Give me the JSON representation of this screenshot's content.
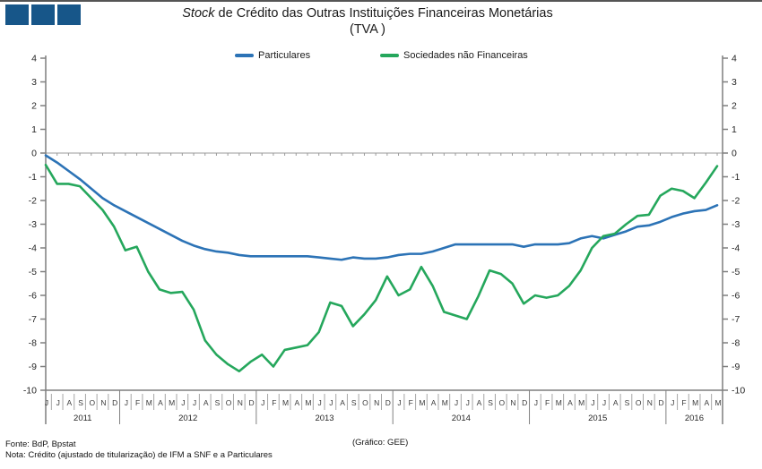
{
  "brand": {
    "square_color": "#175689"
  },
  "header": {
    "title_italic": "Stock",
    "title_rest": " de Crédito das Outras Instituições Financeiras Monetárias",
    "subtitle": "(TVA )"
  },
  "legend": [
    {
      "label": "Particulares",
      "color": "#2c73b6"
    },
    {
      "label": "Sociedades não Financeiras",
      "color": "#25a75c"
    }
  ],
  "footer": {
    "source": "Fonte: BdP, Bpstat",
    "note": "Nota: Crédito (ajustado de titularização) de IFM a SNF e a Particulares",
    "credit": "(Gráfico: GEE)"
  },
  "chart_data": {
    "type": "line",
    "title": "Stock de Crédito das Outras Instituições Financeiras Monetárias (TVA)",
    "xlabel": "",
    "ylabel": "",
    "ylim": [
      -10,
      4
    ],
    "y_ticks": [
      4,
      3,
      2,
      1,
      0,
      -1,
      -2,
      -3,
      -4,
      -5,
      -6,
      -7,
      -8,
      -9,
      -10
    ],
    "grid": "zero-line-only",
    "legend_position": "top",
    "x_month_labels": [
      "J",
      "J",
      "A",
      "S",
      "O",
      "N",
      "D",
      "J",
      "F",
      "M",
      "A",
      "M",
      "J",
      "J",
      "A",
      "S",
      "O",
      "N",
      "D",
      "J",
      "F",
      "M",
      "A",
      "M",
      "J",
      "J",
      "A",
      "S",
      "O",
      "N",
      "D",
      "J",
      "F",
      "M",
      "A",
      "M",
      "J",
      "J",
      "A",
      "S",
      "O",
      "N",
      "D",
      "J",
      "F",
      "M",
      "A",
      "M",
      "J",
      "J",
      "A",
      "S",
      "O",
      "N",
      "D",
      "J",
      "F",
      "M",
      "A",
      "M"
    ],
    "year_groups": [
      {
        "year": "2011",
        "count": 7
      },
      {
        "year": "2012",
        "count": 12
      },
      {
        "year": "2013",
        "count": 12
      },
      {
        "year": "2014",
        "count": 12
      },
      {
        "year": "2015",
        "count": 12
      },
      {
        "year": "2016",
        "count": 5
      }
    ],
    "series": [
      {
        "name": "Particulares",
        "color": "#2c73b6",
        "values": [
          -0.1,
          -0.4,
          -0.75,
          -1.1,
          -1.5,
          -1.9,
          -2.2,
          -2.45,
          -2.7,
          -2.95,
          -3.2,
          -3.45,
          -3.7,
          -3.9,
          -4.05,
          -4.15,
          -4.2,
          -4.3,
          -4.35,
          -4.35,
          -4.35,
          -4.35,
          -4.35,
          -4.35,
          -4.4,
          -4.45,
          -4.5,
          -4.4,
          -4.45,
          -4.45,
          -4.4,
          -4.3,
          -4.25,
          -4.25,
          -4.15,
          -4.0,
          -3.85,
          -3.85,
          -3.85,
          -3.85,
          -3.85,
          -3.85,
          -3.95,
          -3.85,
          -3.85,
          -3.85,
          -3.8,
          -3.6,
          -3.5,
          -3.6,
          -3.45,
          -3.3,
          -3.1,
          -3.05,
          -2.9,
          -2.7,
          -2.55,
          -2.45,
          -2.4,
          -2.2
        ]
      },
      {
        "name": "Sociedades não Financeiras",
        "color": "#25a75c",
        "values": [
          -0.5,
          -1.3,
          -1.3,
          -1.4,
          -1.9,
          -2.4,
          -3.1,
          -4.1,
          -3.95,
          -5.0,
          -5.75,
          -5.9,
          -5.85,
          -6.6,
          -7.9,
          -8.5,
          -8.9,
          -9.2,
          -8.8,
          -8.5,
          -9.0,
          -8.3,
          -8.2,
          -8.1,
          -7.55,
          -6.3,
          -6.45,
          -7.3,
          -6.8,
          -6.2,
          -5.2,
          -6.0,
          -5.75,
          -4.8,
          -5.6,
          -6.7,
          -6.85,
          -7.0,
          -6.05,
          -4.95,
          -5.1,
          -5.5,
          -6.35,
          -6.0,
          -6.1,
          -6.0,
          -5.6,
          -4.95,
          -4.0,
          -3.5,
          -3.4,
          -3.0,
          -2.65,
          -2.6,
          -1.8,
          -1.5,
          -1.6,
          -1.9,
          -1.25,
          -0.55
        ]
      }
    ]
  }
}
